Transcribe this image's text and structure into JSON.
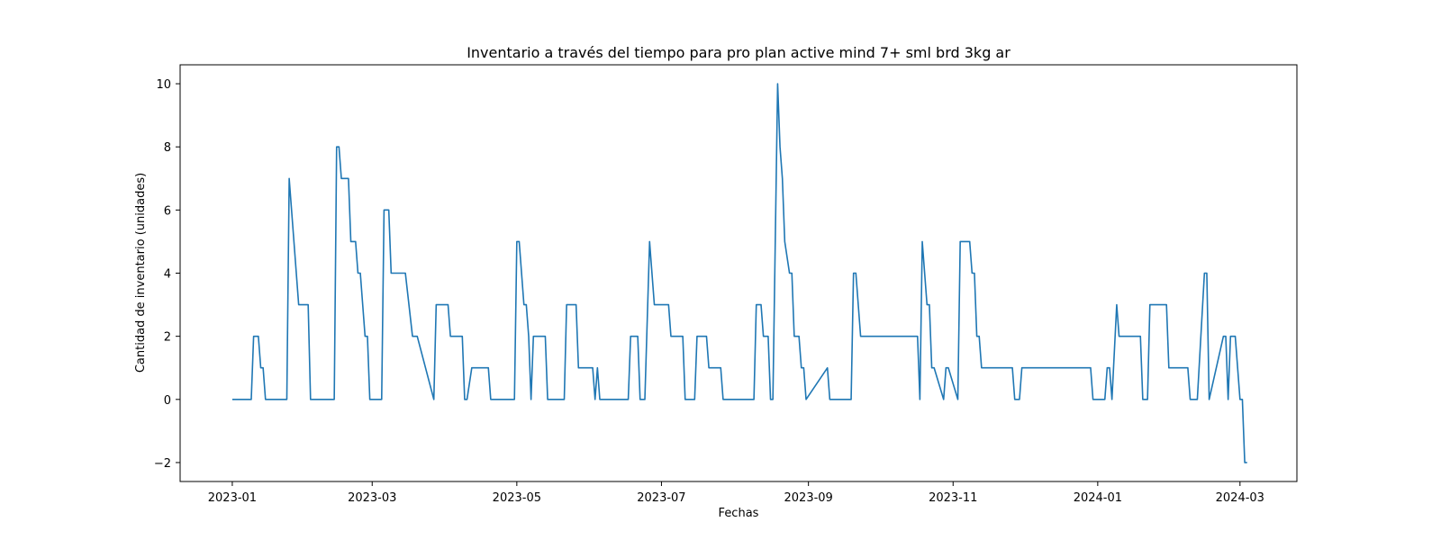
{
  "chart_data": {
    "type": "line",
    "title": "Inventario a través del tiempo para pro plan active mind 7+ sml brd 3kg ar",
    "xlabel": "Fechas",
    "ylabel": "Cantidad de inventario (unidades)",
    "xlim": [
      "2022-12-10",
      "2024-03-25"
    ],
    "ylim": [
      -2.6,
      10.6
    ],
    "x_ticks": [
      "2023-01",
      "2023-03",
      "2023-05",
      "2023-07",
      "2023-09",
      "2023-11",
      "2024-01",
      "2024-03"
    ],
    "y_ticks": [
      "−2",
      "0",
      "2",
      "4",
      "6",
      "8",
      "10"
    ],
    "y_tick_values": [
      -2,
      0,
      2,
      4,
      6,
      8,
      10
    ],
    "grid": false,
    "line_color": "#1f77b4",
    "series": [
      {
        "x": [
          "2023-01-01",
          "2023-01-09",
          "2023-01-10",
          "2023-01-12",
          "2023-01-13",
          "2023-01-14",
          "2023-01-15",
          "2023-01-24",
          "2023-01-25",
          "2023-01-29",
          "2023-02-02",
          "2023-02-03",
          "2023-02-05",
          "2023-02-13",
          "2023-02-14",
          "2023-02-15",
          "2023-02-16",
          "2023-02-19",
          "2023-02-20",
          "2023-02-22",
          "2023-02-23",
          "2023-02-24",
          "2023-02-26",
          "2023-02-27",
          "2023-02-28",
          "2023-03-05",
          "2023-03-06",
          "2023-03-08",
          "2023-03-09",
          "2023-03-13",
          "2023-03-15",
          "2023-03-18",
          "2023-03-20",
          "2023-03-27",
          "2023-03-28",
          "2023-04-02",
          "2023-04-03",
          "2023-04-08",
          "2023-04-09",
          "2023-04-10",
          "2023-04-12",
          "2023-04-19",
          "2023-04-20",
          "2023-04-30",
          "2023-05-01",
          "2023-05-02",
          "2023-05-04",
          "2023-05-05",
          "2023-05-06",
          "2023-05-07",
          "2023-05-08",
          "2023-05-13",
          "2023-05-14",
          "2023-05-21",
          "2023-05-22",
          "2023-05-26",
          "2023-05-27",
          "2023-06-02",
          "2023-06-03",
          "2023-06-04",
          "2023-06-05",
          "2023-06-17",
          "2023-06-18",
          "2023-06-21",
          "2023-06-22",
          "2023-06-24",
          "2023-06-26",
          "2023-06-28",
          "2023-07-04",
          "2023-07-05",
          "2023-07-10",
          "2023-07-11",
          "2023-07-15",
          "2023-07-16",
          "2023-07-20",
          "2023-07-21",
          "2023-07-26",
          "2023-07-27",
          "2023-07-30",
          "2023-07-31",
          "2023-08-09",
          "2023-08-10",
          "2023-08-12",
          "2023-08-13",
          "2023-08-15",
          "2023-08-16",
          "2023-08-17",
          "2023-08-19",
          "2023-08-20",
          "2023-08-21",
          "2023-08-22",
          "2023-08-24",
          "2023-08-25",
          "2023-08-26",
          "2023-08-28",
          "2023-08-29",
          "2023-08-30",
          "2023-08-31",
          "2023-09-09",
          "2023-09-10",
          "2023-09-19",
          "2023-09-20",
          "2023-09-21",
          "2023-09-23",
          "2023-10-17",
          "2023-10-18",
          "2023-10-19",
          "2023-10-21",
          "2023-10-22",
          "2023-10-23",
          "2023-10-24",
          "2023-10-28",
          "2023-10-29",
          "2023-10-30",
          "2023-11-03",
          "2023-11-04",
          "2023-11-08",
          "2023-11-09",
          "2023-11-10",
          "2023-11-11",
          "2023-11-12",
          "2023-11-13",
          "2023-11-26",
          "2023-11-27",
          "2023-11-29",
          "2023-11-30",
          "2023-12-29",
          "2023-12-30",
          "2024-01-04",
          "2024-01-05",
          "2024-01-06",
          "2024-01-07",
          "2024-01-09",
          "2024-01-10",
          "2024-01-19",
          "2024-01-20",
          "2024-01-22",
          "2024-01-23",
          "2024-01-30",
          "2024-01-31",
          "2024-02-08",
          "2024-02-09",
          "2024-02-12",
          "2024-02-15",
          "2024-02-16",
          "2024-02-17",
          "2024-02-23",
          "2024-02-24",
          "2024-02-25",
          "2024-02-26",
          "2024-02-28",
          "2024-03-01",
          "2024-03-02",
          "2024-03-03",
          "2024-03-04"
        ],
        "y": [
          0,
          0,
          2,
          2,
          1,
          1,
          0,
          0,
          7,
          3,
          3,
          0,
          0,
          0,
          8,
          8,
          7,
          7,
          5,
          5,
          4,
          4,
          2,
          2,
          0,
          0,
          6,
          6,
          4,
          4,
          4,
          2,
          2,
          0,
          3,
          3,
          2,
          2,
          0,
          0,
          1,
          1,
          0,
          0,
          5,
          5,
          3,
          3,
          2,
          0,
          2,
          2,
          0,
          0,
          3,
          3,
          1,
          1,
          0,
          1,
          0,
          0,
          2,
          2,
          0,
          0,
          5,
          3,
          3,
          2,
          2,
          0,
          0,
          2,
          2,
          1,
          1,
          0,
          0,
          0,
          0,
          3,
          3,
          2,
          2,
          0,
          0,
          10,
          8,
          7,
          5,
          4,
          4,
          2,
          2,
          1,
          1,
          0,
          1,
          0,
          0,
          4,
          4,
          2,
          2,
          0,
          5,
          3,
          3,
          1,
          1,
          0,
          1,
          1,
          0,
          5,
          5,
          4,
          4,
          2,
          2,
          1,
          1,
          0,
          0,
          1,
          1,
          0,
          0,
          1,
          1,
          0,
          3,
          2,
          2,
          0,
          0,
          3,
          3,
          1,
          1,
          0,
          0,
          4,
          4,
          0,
          2,
          2,
          0,
          2,
          2,
          0,
          0,
          -2,
          -2
        ]
      }
    ]
  }
}
